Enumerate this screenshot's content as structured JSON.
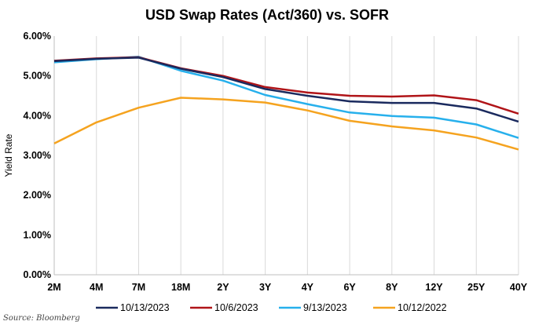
{
  "chart_data": {
    "type": "line",
    "title": "USD Swap Rates (Act/360) vs. SOFR",
    "xlabel": "",
    "ylabel": "Yield Rate",
    "ylim": [
      0,
      6
    ],
    "y_ticks": [
      "0.00%",
      "1.00%",
      "2.00%",
      "3.00%",
      "4.00%",
      "5.00%",
      "6.00%"
    ],
    "categories": [
      "2M",
      "4M",
      "7M",
      "18M",
      "2Y",
      "3Y",
      "4Y",
      "6Y",
      "8Y",
      "12Y",
      "25Y",
      "40Y"
    ],
    "grid": "vertical",
    "legend_position": "bottom",
    "series": [
      {
        "name": "10/13/2023",
        "color": "#1a2a5e",
        "values": [
          5.37,
          5.43,
          5.46,
          5.18,
          4.97,
          4.67,
          4.5,
          4.36,
          4.32,
          4.32,
          4.18,
          3.85
        ]
      },
      {
        "name": "10/6/2023",
        "color": "#b01418",
        "values": [
          5.38,
          5.44,
          5.47,
          5.19,
          5.0,
          4.72,
          4.58,
          4.5,
          4.48,
          4.51,
          4.39,
          4.05
        ]
      },
      {
        "name": "9/13/2023",
        "color": "#27b0ec",
        "values": [
          5.34,
          5.42,
          5.48,
          5.13,
          4.88,
          4.52,
          4.29,
          4.08,
          3.99,
          3.95,
          3.78,
          3.44
        ]
      },
      {
        "name": "10/12/2022",
        "color": "#f5a31f",
        "values": [
          3.3,
          3.83,
          4.2,
          4.45,
          4.41,
          4.33,
          4.13,
          3.87,
          3.73,
          3.63,
          3.45,
          3.15
        ]
      }
    ]
  },
  "source": "Source: Bloomberg"
}
